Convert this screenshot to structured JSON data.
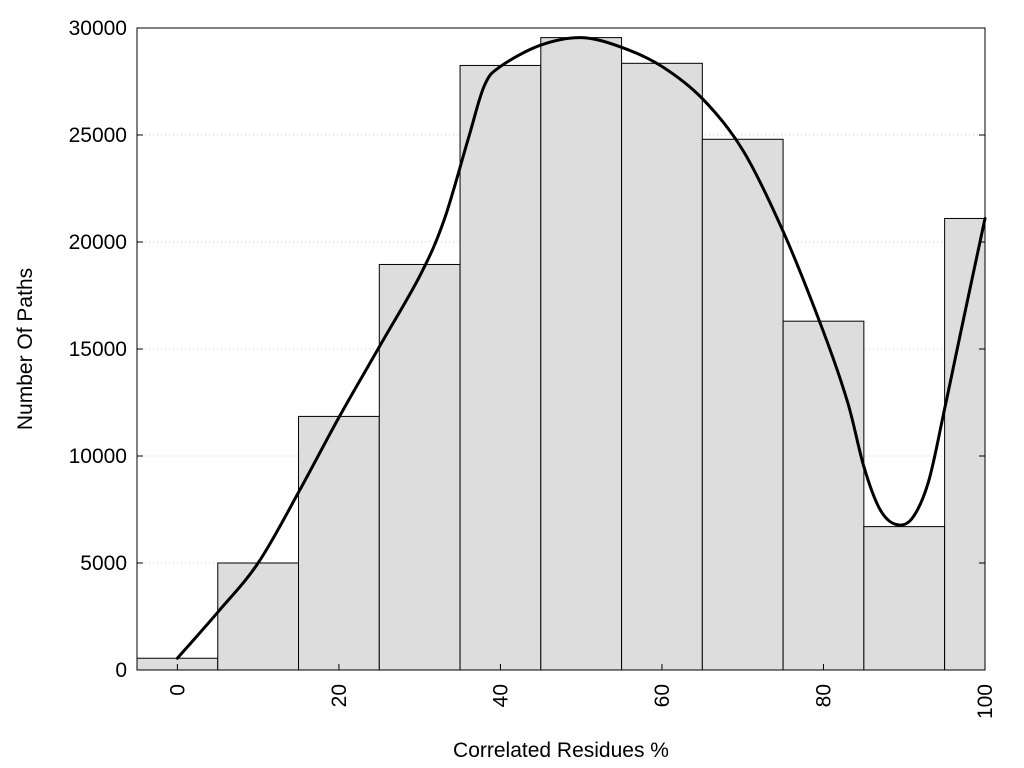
{
  "chart_data": {
    "type": "bar",
    "xlabel": "Correlated Residues %",
    "ylabel": "Number Of Paths",
    "xlim": [
      -5,
      100
    ],
    "ylim": [
      0,
      30000
    ],
    "x_ticks": [
      0,
      20,
      40,
      60,
      80,
      100
    ],
    "y_ticks": [
      0,
      5000,
      10000,
      15000,
      20000,
      25000,
      30000
    ],
    "grid": "horizontal dotted",
    "bin_width": 10,
    "series": [
      {
        "type": "bar",
        "x": [
          0,
          10,
          20,
          30,
          40,
          50,
          60,
          70,
          80,
          90,
          100
        ],
        "values": [
          550,
          5000,
          11850,
          18950,
          28250,
          29550,
          28350,
          24800,
          16300,
          6700,
          21100
        ]
      },
      {
        "type": "line",
        "points": [
          [
            0,
            550
          ],
          [
            5,
            2700
          ],
          [
            10,
            5000
          ],
          [
            15,
            8300
          ],
          [
            20,
            11800
          ],
          [
            25,
            15100
          ],
          [
            30,
            18400
          ],
          [
            33,
            21000
          ],
          [
            36,
            24800
          ],
          [
            38,
            27300
          ],
          [
            40,
            28200
          ],
          [
            45,
            29200
          ],
          [
            50,
            29550
          ],
          [
            55,
            29100
          ],
          [
            60,
            28200
          ],
          [
            65,
            26700
          ],
          [
            70,
            24300
          ],
          [
            75,
            20500
          ],
          [
            80,
            15800
          ],
          [
            83,
            12500
          ],
          [
            85,
            9500
          ],
          [
            87,
            7500
          ],
          [
            89,
            6800
          ],
          [
            91,
            7100
          ],
          [
            93,
            8800
          ],
          [
            95,
            12200
          ],
          [
            97,
            15800
          ],
          [
            100,
            21100
          ]
        ]
      }
    ]
  }
}
